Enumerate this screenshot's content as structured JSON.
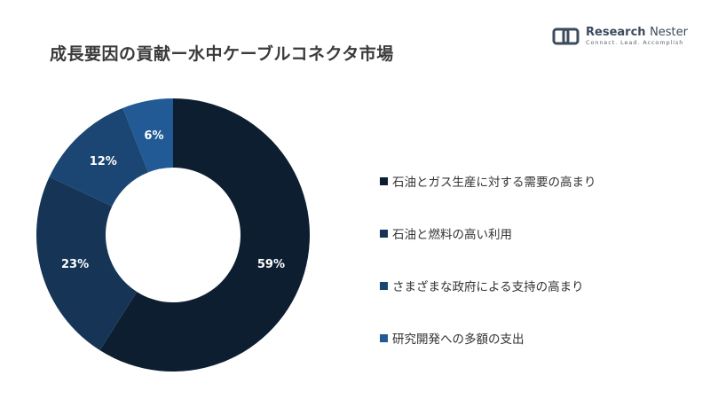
{
  "title": "成長要因の貢献ー水中ケーブルコネクタ市場",
  "logo": {
    "name_bold": "Research",
    "name_light": "Nester",
    "tagline": "Connect. Lead. Accomplish",
    "colors": {
      "mark": "#3c4a5c"
    }
  },
  "chart_data": {
    "type": "pie",
    "donut": true,
    "categories": [
      "石油とガス生産に対する需要の高まり",
      "石油と燃料の高い利用",
      "さまざまな政府による支持の高まり",
      "研究開発への多額の支出"
    ],
    "values": [
      59,
      23,
      12,
      6
    ],
    "labels": [
      "59%",
      "23%",
      "12%",
      "6%"
    ],
    "colors": [
      "#0d1e31",
      "#163556",
      "#1b4572",
      "#215a95"
    ],
    "legend_position": "right"
  }
}
